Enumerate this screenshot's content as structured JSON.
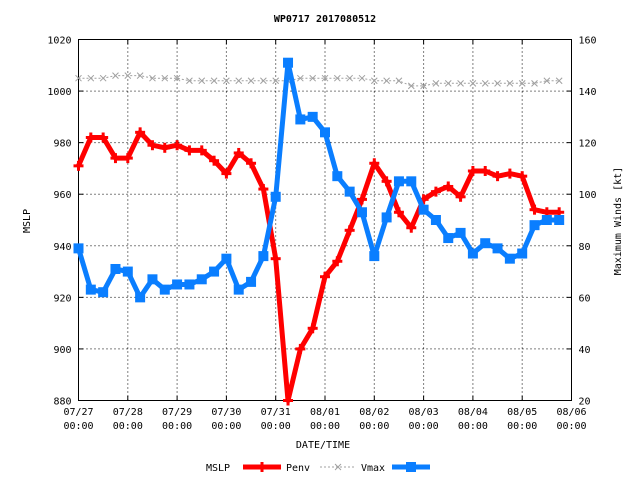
{
  "chart_data": {
    "type": "line",
    "title": "WP0717 2017080512",
    "xlabel": "DATE/TIME",
    "ylabel_left": "MSLP",
    "ylabel_right": "Maximum Winds [kt]",
    "x_tick_labels": [
      [
        "07/27",
        "00:00"
      ],
      [
        "07/28",
        "00:00"
      ],
      [
        "07/29",
        "00:00"
      ],
      [
        "07/30",
        "00:00"
      ],
      [
        "07/31",
        "00:00"
      ],
      [
        "08/01",
        "00:00"
      ],
      [
        "08/02",
        "00:00"
      ],
      [
        "08/03",
        "00:00"
      ],
      [
        "08/04",
        "00:00"
      ],
      [
        "08/05",
        "00:00"
      ],
      [
        "08/06",
        "00:00"
      ]
    ],
    "x_range_hours": [
      0,
      240
    ],
    "ylim_left": [
      880,
      1020
    ],
    "yticks_left": [
      880,
      900,
      920,
      940,
      960,
      980,
      1000,
      1020
    ],
    "ylim_right": [
      20,
      160
    ],
    "yticks_right": [
      20,
      40,
      60,
      80,
      100,
      120,
      140,
      160
    ],
    "legend_position": "bottom",
    "legend_labels": {
      "mslp": "MSLP",
      "penv": "Penv",
      "vmax": "Vmax"
    },
    "x_hours": [
      0,
      6,
      12,
      18,
      24,
      30,
      36,
      42,
      48,
      54,
      60,
      66,
      72,
      78,
      84,
      90,
      96,
      102,
      108,
      114,
      120,
      126,
      132,
      138,
      144,
      150,
      156,
      162,
      168,
      174,
      180,
      186,
      192,
      198,
      204,
      210,
      216,
      222,
      228,
      234
    ],
    "series": [
      {
        "name": "MSLP",
        "axis": "left",
        "color": "#ff0000",
        "marker": "plus",
        "values": [
          971,
          982,
          982,
          974,
          974,
          984,
          979,
          978,
          979,
          977,
          977,
          973,
          968,
          976,
          972,
          962,
          935,
          880,
          900,
          908,
          928,
          934,
          946,
          958,
          972,
          965,
          953,
          947,
          958,
          961,
          963,
          959,
          969,
          969,
          967,
          968,
          967,
          954,
          953,
          953
        ]
      },
      {
        "name": "Penv",
        "axis": "left",
        "color": "#a0a0a0",
        "marker": "x",
        "values": [
          1005,
          1005,
          1005,
          1006,
          1006,
          1006,
          1005,
          1005,
          1005,
          1004,
          1004,
          1004,
          1004,
          1004,
          1004,
          1004,
          1004,
          1004,
          1005,
          1005,
          1005,
          1005,
          1005,
          1005,
          1004,
          1004,
          1004,
          1002,
          1002,
          1003,
          1003,
          1003,
          1003,
          1003,
          1003,
          1003,
          1003,
          1003,
          1004,
          1004
        ]
      },
      {
        "name": "Vmax",
        "axis": "right",
        "color": "#0a7eff",
        "marker": "square",
        "values": [
          79,
          63,
          62,
          71,
          70,
          60,
          67,
          63,
          65,
          65,
          67,
          70,
          75,
          63,
          66,
          76,
          99,
          151,
          129,
          130,
          124,
          107,
          101,
          93,
          76,
          91,
          105,
          105,
          94,
          90,
          83,
          85,
          77,
          81,
          79,
          75,
          77,
          88,
          90,
          90
        ]
      }
    ]
  }
}
